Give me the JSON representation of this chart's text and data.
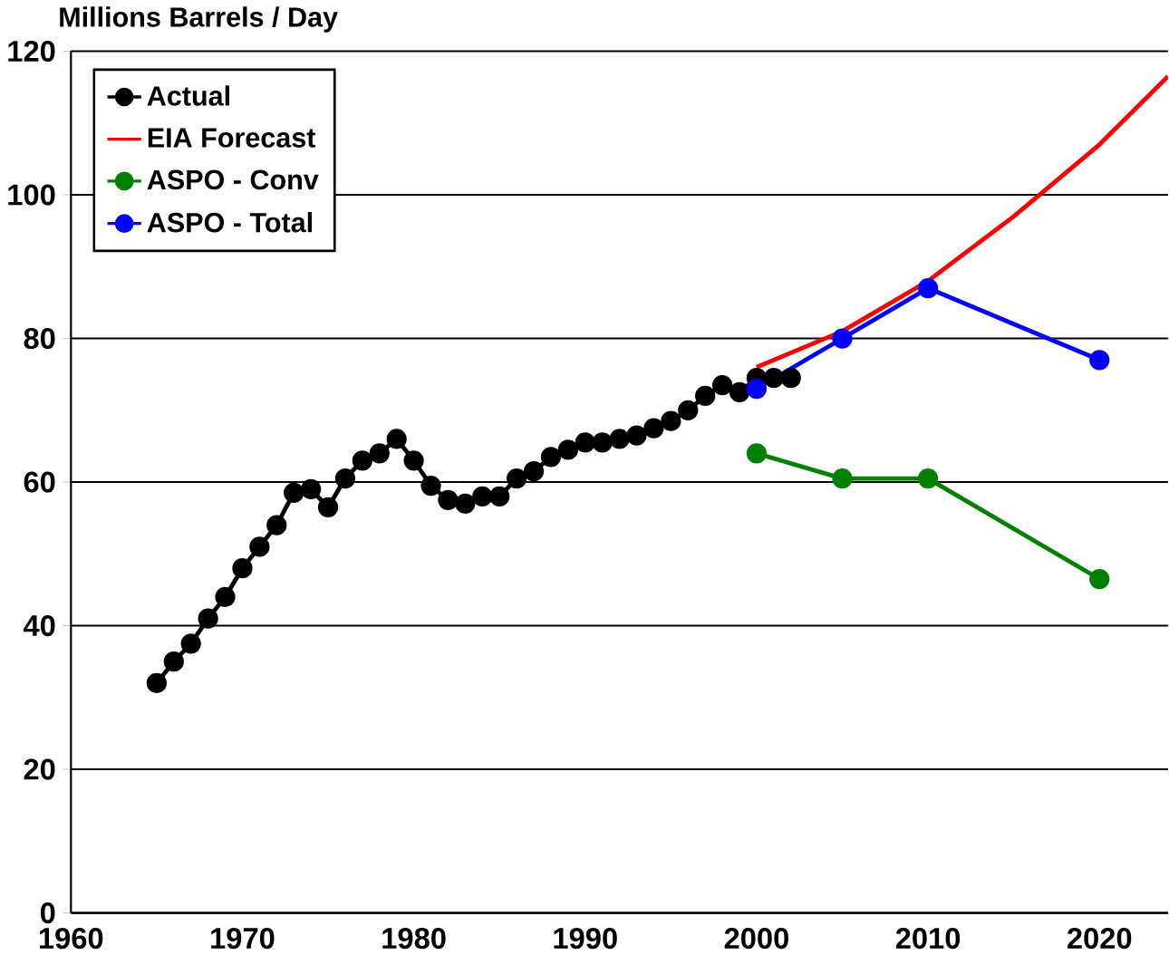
{
  "chart_data": {
    "type": "line",
    "title": "Millions Barrels / Day",
    "xlim": [
      1960,
      2024
    ],
    "xticks": [
      1960,
      1970,
      1980,
      1990,
      2000,
      2010,
      2020
    ],
    "ylim": [
      0,
      120
    ],
    "yticks": [
      0,
      20,
      40,
      60,
      80,
      100,
      120
    ],
    "grid": "y",
    "legend": "top left",
    "marker": "circle",
    "series": [
      {
        "name": "Actual",
        "color": "#000000",
        "x": [
          1965,
          1966,
          1967,
          1968,
          1969,
          1970,
          1971,
          1972,
          1973,
          1974,
          1975,
          1976,
          1977,
          1978,
          1979,
          1980,
          1981,
          1982,
          1983,
          1984,
          1985,
          1986,
          1987,
          1988,
          1989,
          1990,
          1991,
          1992,
          1993,
          1994,
          1995,
          1996,
          1997,
          1998,
          1999,
          2000,
          2001,
          2002
        ],
        "values": [
          32,
          35,
          37.5,
          41,
          44,
          48,
          51,
          54,
          58.5,
          59,
          56.5,
          60.5,
          63,
          64,
          66,
          63,
          59.5,
          57.5,
          57,
          58,
          58,
          60.5,
          61.5,
          63.5,
          64.5,
          65.5,
          65.5,
          66,
          66.5,
          67.5,
          68.5,
          70,
          72,
          73.5,
          72.5,
          74.5,
          74.5,
          74.5
        ]
      },
      {
        "name": "EIA Forecast",
        "color": "#ff0000",
        "marker": "none",
        "x": [
          2000,
          2005,
          2010,
          2015,
          2020,
          2024
        ],
        "values": [
          76,
          81,
          88,
          97,
          107,
          116.5
        ]
      },
      {
        "name": "ASPO - Conv",
        "color": "#008000",
        "x": [
          2000,
          2005,
          2010,
          2020
        ],
        "values": [
          64,
          60.5,
          60.5,
          46.5
        ]
      },
      {
        "name": "ASPO - Total",
        "color": "#0000ff",
        "x": [
          2000,
          2005,
          2010,
          2020
        ],
        "values": [
          73,
          80,
          87,
          77
        ]
      }
    ]
  }
}
